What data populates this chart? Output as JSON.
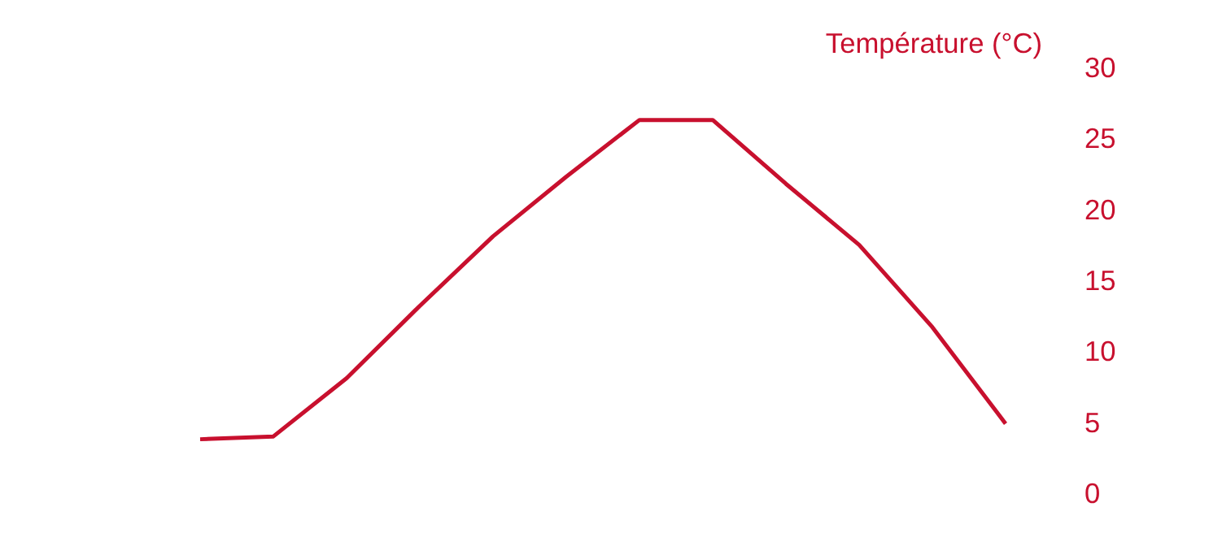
{
  "chart_data": {
    "type": "line",
    "ylabel": "Température (°C)",
    "categories": [
      null,
      null,
      null,
      null,
      null,
      null,
      null,
      null,
      null,
      null,
      null,
      null
    ],
    "series": [
      {
        "color": "#c8102e",
        "values": [
          3.8,
          4.0,
          8.1,
          13.2,
          18.1,
          22.3,
          26.3,
          26.3,
          21.8,
          17.5,
          11.7,
          4.9
        ]
      }
    ],
    "ylim": [
      0,
      30
    ],
    "yticks": [
      0,
      5,
      10,
      15,
      20,
      25,
      30
    ],
    "tick_labels": "y",
    "grid": false,
    "marker": "none",
    "line_style": "solid"
  }
}
